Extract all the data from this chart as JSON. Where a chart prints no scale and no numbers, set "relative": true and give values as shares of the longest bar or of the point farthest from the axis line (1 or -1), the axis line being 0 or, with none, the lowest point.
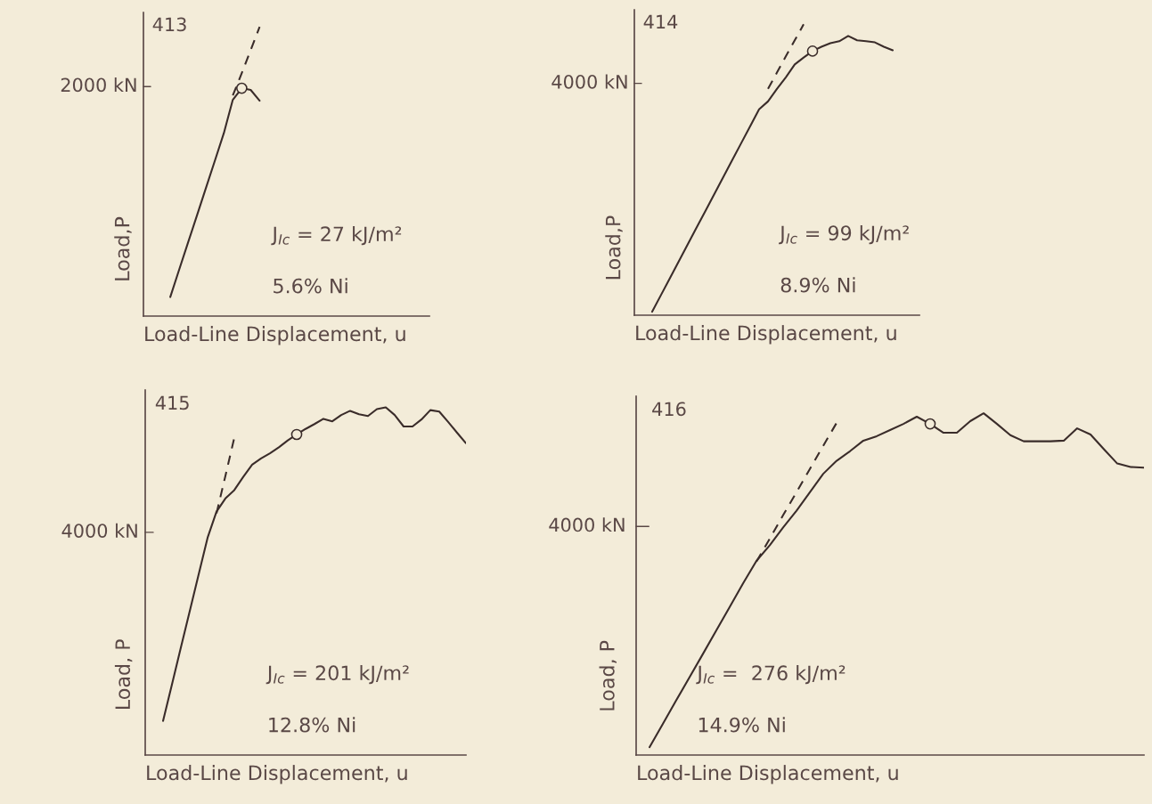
{
  "chart_data": [
    {
      "type": "line",
      "relative": true,
      "title": "413",
      "xlabel": "Load-Line Displacement, u",
      "ylabel": "Load,P",
      "categories": [
        null,
        null,
        null,
        null,
        null,
        null,
        null,
        null,
        null,
        null,
        null
      ],
      "series": [
        {
          "color": "#3a2c2a",
          "line_style": "solid",
          "values": [
            0.066,
            0.161,
            0.255,
            0.349,
            0.444,
            0.538,
            0.633,
            0.748,
            0.788,
            0.782,
            0.745
          ]
        },
        {
          "color": "#3a2c2a",
          "line_style": "dashed",
          "values": [
            null,
            null,
            null,
            null,
            null,
            null,
            null,
            0.763,
            0.84,
            0.92,
            1
          ]
        },
        {
          "color": "#3a2c2a",
          "marker": "circle",
          "values": [
            null,
            null,
            null,
            null,
            null,
            null,
            null,
            null,
            0.788,
            null,
            null
          ]
        }
      ],
      "annotations": [
        "2000 kN",
        "J$_{Ic}$ = 27 kJ/m²",
        "5.6% Ni"
      ]
    },
    {
      "type": "line",
      "relative": true,
      "title": "414",
      "xlabel": "Load-Line Displacement, u",
      "ylabel": "Load,P",
      "categories": [
        null,
        null,
        null,
        null,
        null,
        null,
        null,
        null,
        null,
        null,
        null,
        null,
        null,
        null,
        null,
        null,
        null,
        null,
        null,
        null,
        null,
        null,
        null,
        null,
        null,
        null,
        null,
        null
      ],
      "series": [
        {
          "color": "#3a2c2a",
          "line_style": "solid",
          "values": [
            0.012,
            0.07,
            0.128,
            0.186,
            0.244,
            0.302,
            0.36,
            0.418,
            0.476,
            0.534,
            0.592,
            0.65,
            0.708,
            0.735,
            0.778,
            0.818,
            0.862,
            0.886,
            0.908,
            0.923,
            0.935,
            0.942,
            0.96,
            0.945,
            0.942,
            0.938,
            0.923,
            0.911
          ]
        },
        {
          "color": "#3a2c2a",
          "line_style": "dashed",
          "values": [
            null,
            null,
            null,
            null,
            null,
            null,
            null,
            null,
            null,
            null,
            null,
            null,
            null,
            0.778,
            0.834,
            0.89,
            0.945,
            1,
            null,
            null,
            null,
            null,
            null,
            null,
            null,
            null,
            null,
            null
          ]
        },
        {
          "color": "#3a2c2a",
          "marker": "circle",
          "values": [
            null,
            null,
            null,
            null,
            null,
            null,
            null,
            null,
            null,
            null,
            null,
            null,
            null,
            null,
            null,
            null,
            null,
            null,
            0.908,
            null,
            null,
            null,
            null,
            null,
            null,
            null,
            null,
            null
          ]
        }
      ],
      "annotations": [
        "4000 kN",
        "J$_{Ic}$ = 99 kJ/m²",
        "8.9% Ni"
      ]
    },
    {
      "type": "line",
      "relative": true,
      "title": "415",
      "xlabel": "Load-Line Displacement, u",
      "ylabel": "Load, P",
      "categories": [
        null,
        null,
        null,
        null,
        null,
        null,
        null,
        null,
        null,
        null,
        null,
        null,
        null,
        null,
        null,
        null,
        null,
        null,
        null,
        null,
        null,
        null,
        null,
        null,
        null,
        null,
        null,
        null,
        null,
        null,
        null,
        null,
        null,
        null,
        null
      ],
      "series": [
        {
          "color": "#3a2c2a",
          "line_style": "solid",
          "values": [
            0.098,
            0.203,
            0.309,
            0.414,
            0.52,
            0.625,
            0.7,
            0.738,
            0.762,
            0.8,
            0.835,
            0.853,
            0.868,
            0.885,
            0.905,
            0.922,
            0.938,
            0.952,
            0.967,
            0.96,
            0.978,
            0.99,
            0.98,
            0.975,
            0.995,
            1,
            0.978,
            0.945,
            0.945,
            0.965,
            0.992,
            0.988,
            0.958,
            0.927,
            0.897
          ]
        },
        {
          "color": "#3a2c2a",
          "line_style": "dashed",
          "values": [
            null,
            null,
            null,
            null,
            null,
            null,
            0.695,
            0.803,
            0.913,
            null,
            null,
            null,
            null,
            null,
            null,
            null,
            null,
            null,
            null,
            null,
            null,
            null,
            null,
            null,
            null,
            null,
            null,
            null,
            null,
            null,
            null,
            null,
            null,
            null,
            null
          ]
        },
        {
          "color": "#3a2c2a",
          "marker": "circle",
          "values": [
            null,
            null,
            null,
            null,
            null,
            null,
            null,
            null,
            null,
            null,
            null,
            null,
            null,
            null,
            null,
            0.922,
            null,
            null,
            null,
            null,
            null,
            null,
            null,
            null,
            null,
            null,
            null,
            null,
            null,
            null,
            null,
            null,
            null,
            null,
            null
          ]
        }
      ],
      "annotations": [
        "4000 kN",
        "J$_{Ic}$ = 201 kJ/m²",
        "12.8% Ni"
      ]
    },
    {
      "type": "line",
      "relative": true,
      "title": "416",
      "xlabel": "Load-Line Displacement, u",
      "ylabel": "Load, P",
      "categories": [
        null,
        null,
        null,
        null,
        null,
        null,
        null,
        null,
        null,
        null,
        null,
        null,
        null,
        null,
        null,
        null,
        null,
        null,
        null,
        null,
        null,
        null,
        null,
        null,
        null,
        null,
        null,
        null,
        null,
        null,
        null,
        null,
        null,
        null,
        null,
        null,
        null,
        null
      ],
      "series": [
        {
          "color": "#3a2c2a",
          "line_style": "solid",
          "values": [
            0.023,
            0.091,
            0.16,
            0.228,
            0.296,
            0.365,
            0.433,
            0.502,
            0.568,
            0.614,
            0.666,
            0.715,
            0.769,
            0.823,
            0.861,
            0.889,
            0.92,
            0.933,
            0.951,
            0.969,
            0.99,
            0.969,
            0.943,
            0.943,
            0.977,
            1,
            0.969,
            0.936,
            0.918,
            0.918,
            0.918,
            0.92,
            0.956,
            0.938,
            0.895,
            0.853,
            0.843,
            0.841
          ]
        },
        {
          "color": "#3a2c2a",
          "line_style": "dashed",
          "values": [
            null,
            null,
            null,
            null,
            null,
            null,
            null,
            null,
            0.566,
            0.633,
            0.702,
            0.769,
            0.837,
            0.905,
            0.972,
            null,
            null,
            null,
            null,
            null,
            null,
            null,
            null,
            null,
            null,
            null,
            null,
            null,
            null,
            null,
            null,
            null,
            null,
            null,
            null,
            null,
            null,
            null
          ]
        },
        {
          "color": "#3a2c2a",
          "marker": "circle",
          "values": [
            null,
            null,
            null,
            null,
            null,
            null,
            null,
            null,
            null,
            null,
            null,
            null,
            null,
            null,
            null,
            null,
            null,
            null,
            null,
            null,
            null,
            0.969,
            null,
            null,
            null,
            null,
            null,
            null,
            null,
            null,
            null,
            null,
            null,
            null,
            null,
            null,
            null,
            null
          ]
        }
      ],
      "annotations": [
        "4000 kN",
        "J$_{Ic}$ =  276 kJ/m²",
        "14.9% Ni"
      ]
    }
  ]
}
